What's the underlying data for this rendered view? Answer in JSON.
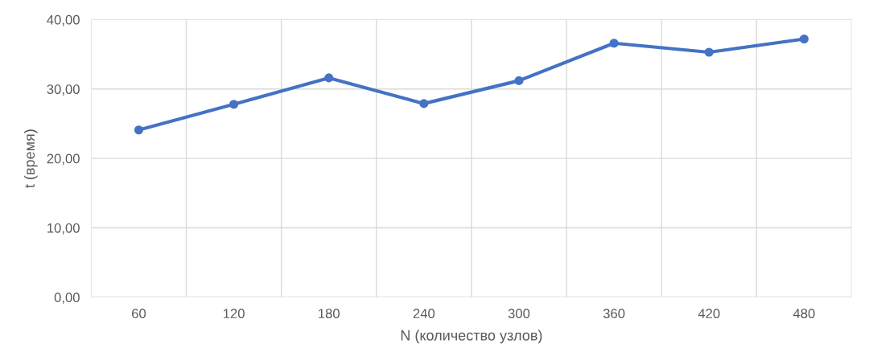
{
  "chart_data": {
    "type": "line",
    "xlabel": "N (количество узлов)",
    "ylabel": "t (время)",
    "categories": [
      "60",
      "120",
      "180",
      "240",
      "300",
      "360",
      "420",
      "480"
    ],
    "series": [
      {
        "color": "#4472c4",
        "values": [
          24.1,
          27.8,
          31.6,
          27.9,
          31.2,
          36.6,
          35.3,
          37.2
        ]
      }
    ],
    "ylim": [
      0,
      40
    ],
    "yticks": [
      {
        "value": 0,
        "label": "0,00"
      },
      {
        "value": 10,
        "label": "10,00"
      },
      {
        "value": 20,
        "label": "20,00"
      },
      {
        "value": 30,
        "label": "30,00"
      },
      {
        "value": 40,
        "label": "40,00"
      }
    ],
    "grid": true,
    "marker": "circle",
    "line_style": "solid"
  }
}
